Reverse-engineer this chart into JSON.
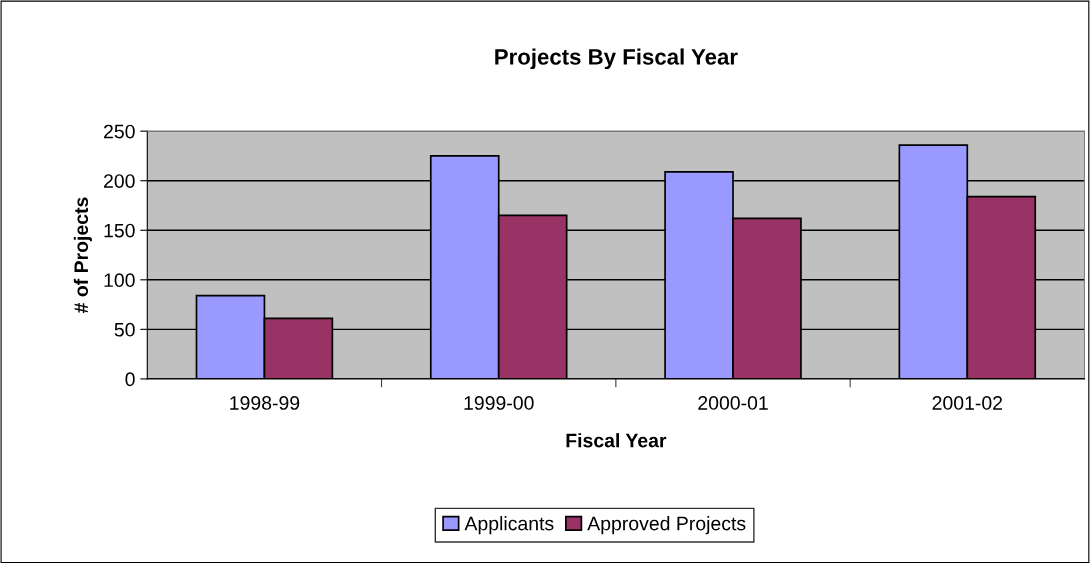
{
  "chart_data": {
    "type": "bar",
    "title": "Projects By Fiscal Year",
    "xlabel": "Fiscal Year",
    "ylabel": "# of Projects",
    "categories": [
      "1998-99",
      "1999-00",
      "2000-01",
      "2001-02"
    ],
    "series": [
      {
        "name": "Applicants",
        "color": "#9999ff",
        "values": [
          84,
          225,
          209,
          236
        ]
      },
      {
        "name": "Approved Projects",
        "color": "#993366",
        "values": [
          61,
          165,
          162,
          184
        ]
      }
    ],
    "ylim": [
      0,
      250
    ],
    "yticks": [
      0,
      50,
      100,
      150,
      200,
      250
    ],
    "grid": "y",
    "legend": "bottom"
  }
}
